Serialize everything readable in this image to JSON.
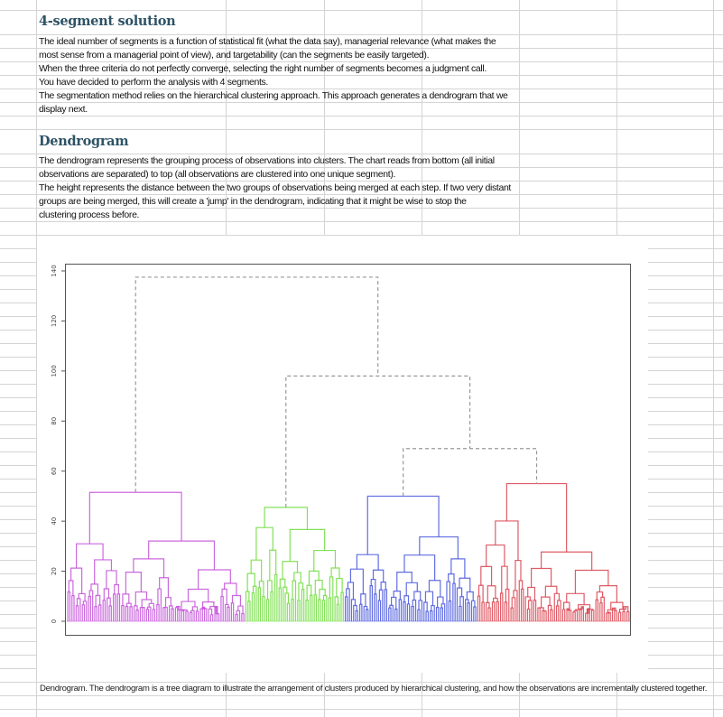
{
  "section1": {
    "title": "4-segment solution",
    "lines": [
      "The ideal number of segments is a function of statistical fit (what the data say), managerial relevance (what makes the",
      "most sense from a managerial point of view), and targetability (can the segments be easily targeted).",
      "When the three criteria do not perfectly converge, selecting the right number of segments becomes a judgment call.",
      "You have decided to perform the analysis with 4 segments.",
      "The segmentation method relies on the hierarchical clustering approach. This approach generates a dendrogram that we",
      "display next."
    ]
  },
  "section2": {
    "title": "Dendrogram",
    "lines": [
      "The dendrogram represents the grouping process of observations into clusters. The chart reads from bottom (all initial",
      "observations are separated) to top (all observations are clustered into one unique segment).",
      "The height represents the distance between the two groups of observations being merged at each step. If two very distant",
      "groups are being merged, this will create a 'jump' in the dendrogram, indicating that it might be wise to stop the",
      "clustering process before."
    ]
  },
  "caption": "Dendrogram. The dendrogram is a tree diagram to illustrate the arrangement of clusters produced by hierarchical clustering, and how the observations are incrementally clustered together.",
  "chart_data": {
    "type": "dendrogram",
    "title": "",
    "xlabel": "",
    "ylabel": "",
    "ylim": [
      0,
      145
    ],
    "yticks": [
      "0",
      "20",
      "40",
      "60",
      "80",
      "100",
      "120",
      "140"
    ],
    "grid": false,
    "clusters": [
      {
        "color": "#c24fd8",
        "top_height": 51.5,
        "approx_leaves": 86
      },
      {
        "color": "#6edc3c",
        "top_height": 45.5,
        "approx_leaves": 48
      },
      {
        "color": "#4655dc",
        "top_height": 50,
        "approx_leaves": 64
      },
      {
        "color": "#d9404c",
        "top_height": 55,
        "approx_leaves": 74
      }
    ],
    "merges": [
      {
        "join": [
          "cluster-3",
          "cluster-4"
        ],
        "height": 69
      },
      {
        "join": [
          "cluster-2",
          "cluster-3+4"
        ],
        "height": 98
      },
      {
        "join": [
          "cluster-1",
          "cluster-2+3+4"
        ],
        "height": 137.5
      }
    ],
    "merge_line_color": "#999999"
  }
}
